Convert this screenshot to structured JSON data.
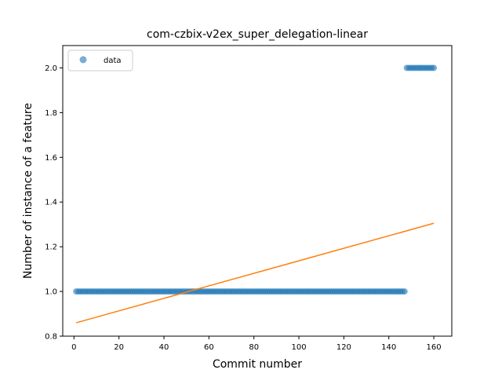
{
  "chart_data": {
    "type": "scatter",
    "title": "com-czbix-v2ex_super_delegation-linear",
    "xlabel": "Commit number",
    "ylabel": "Number of instance of a feature",
    "xlim": [
      -5,
      168
    ],
    "ylim": [
      0.8,
      2.1
    ],
    "xticks": [
      0,
      20,
      40,
      60,
      80,
      100,
      120,
      140,
      160
    ],
    "yticks": [
      0.8,
      1.0,
      1.2,
      1.4,
      1.6,
      1.8,
      2.0
    ],
    "xtick_labels": [
      "0",
      "20",
      "40",
      "60",
      "80",
      "100",
      "120",
      "140",
      "160"
    ],
    "ytick_labels": [
      "0.8",
      "1.0",
      "1.2",
      "1.4",
      "1.6",
      "1.8",
      "2.0"
    ],
    "grid": false,
    "legend": {
      "placement": "top-left",
      "entries": [
        "data"
      ]
    },
    "series": [
      {
        "name": "data",
        "kind": "scatter",
        "color": "#1f77b4",
        "segments": [
          {
            "x_start": 1,
            "x_end": 147,
            "y": 1.0
          },
          {
            "x_start": 148,
            "x_end": 160,
            "y": 2.0
          }
        ]
      },
      {
        "kind": "line",
        "color": "#ff7f0e",
        "x": [
          1,
          160
        ],
        "y": [
          0.86,
          1.305
        ]
      }
    ]
  }
}
